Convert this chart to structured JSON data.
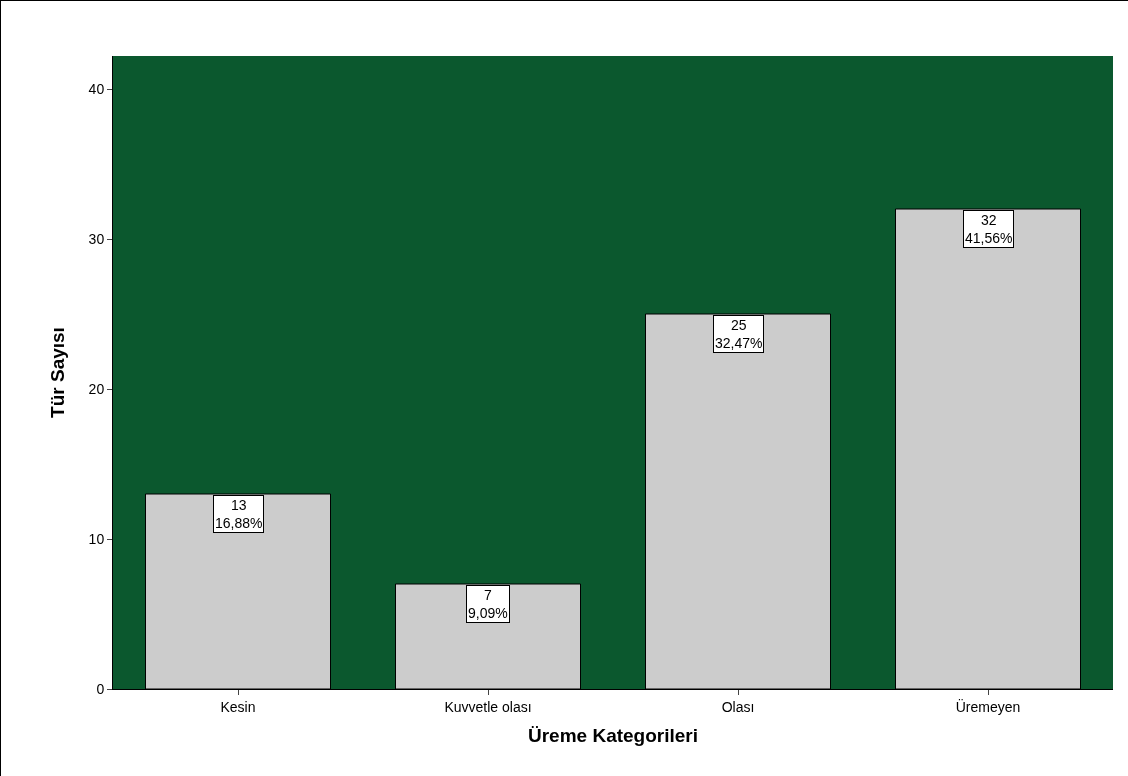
{
  "chart_data": {
    "type": "bar",
    "xlabel": "Üreme Kategorileri",
    "ylabel": "Tür Sayısı",
    "categories": [
      "Kesin",
      "Kuvvetle olası",
      "Olası",
      "Üremeyen"
    ],
    "values": [
      13,
      7,
      25,
      32
    ],
    "color": "#cccccc",
    "value_labels": [
      "13\n16,88%",
      "7\n9,09%",
      "25\n32,47%",
      "32\n41,56%"
    ],
    "ylim": [
      0,
      42.2
    ],
    "yticks": [
      0,
      10,
      20,
      30,
      40
    ]
  }
}
